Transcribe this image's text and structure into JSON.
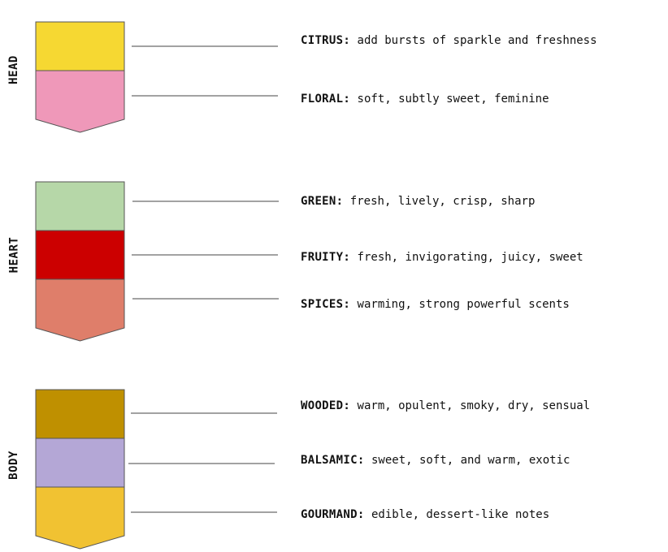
{
  "groups": [
    {
      "label": "HEAD",
      "notes": [
        {
          "name": "CITRUS:",
          "desc": "add bursts of sparkle and freshness",
          "color": "#f6d832"
        },
        {
          "name": "FLORAL:",
          "desc": "soft, subtly sweet, feminine",
          "color": "#ef98b9"
        }
      ]
    },
    {
      "label": "HEART",
      "notes": [
        {
          "name": "GREEN:",
          "desc": "fresh, lively, crisp, sharp",
          "color": "#b6d7a8"
        },
        {
          "name": "FRUITY:",
          "desc": "fresh, invigorating, juicy, sweet",
          "color": "#cc0000"
        },
        {
          "name": "SPICES:",
          "desc": "warming, strong powerful scents",
          "color": "#df7e6a"
        }
      ]
    },
    {
      "label": "BODY",
      "notes": [
        {
          "name": "WOODED:",
          "desc": "warm, opulent, smoky, dry, sensual",
          "color": "#bf9000"
        },
        {
          "name": "BALSAMIC:",
          "desc": "sweet, soft, and warm, exotic",
          "color": "#b4a7d6"
        },
        {
          "name": "GOURMAND:",
          "desc": "edible, dessert-like notes",
          "color": "#f1c232"
        }
      ]
    }
  ]
}
